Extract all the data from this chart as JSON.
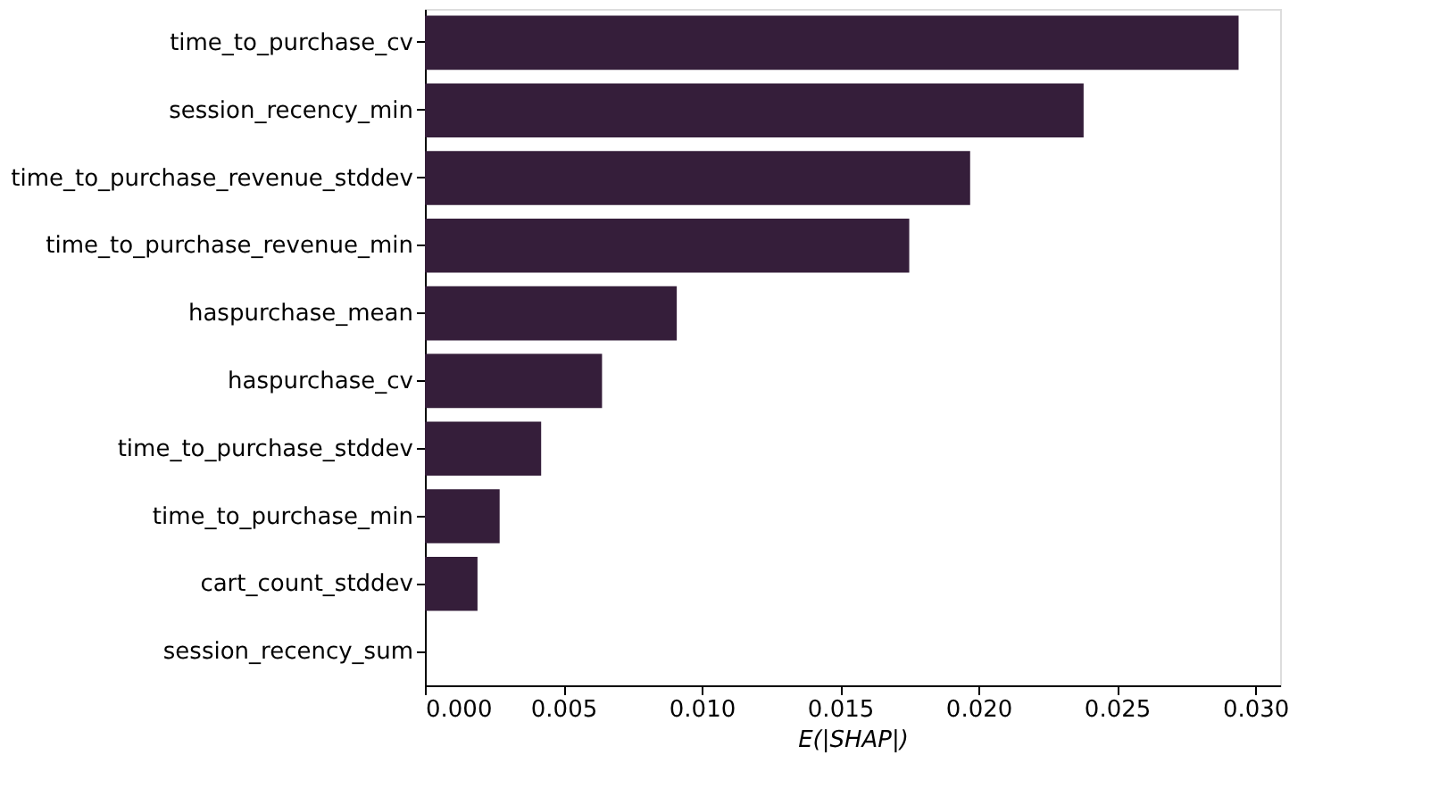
{
  "chart_data": {
    "type": "bar",
    "orientation": "horizontal",
    "xlabel": "E(|SHAP|)",
    "categories": [
      "time_to_purchase_cv",
      "session_recency_min",
      "time_to_purchase_revenue_stddev",
      "time_to_purchase_revenue_min",
      "haspurchase_mean",
      "haspurchase_cv",
      "time_to_purchase_stddev",
      "time_to_purchase_min",
      "cart_count_stddev",
      "session_recency_sum"
    ],
    "values": [
      0.0294,
      0.0238,
      0.0197,
      0.0175,
      0.0091,
      0.0064,
      0.0042,
      0.0027,
      0.0019,
      0.0
    ],
    "color": "#351e3a",
    "xlim": [
      0,
      0.0309
    ],
    "xticks": [
      {
        "value": 0,
        "label": "0.000"
      },
      {
        "value": 0.005,
        "label": "0.005"
      },
      {
        "value": 0.01,
        "label": "0.010"
      },
      {
        "value": 0.015,
        "label": "0.015"
      },
      {
        "value": 0.02,
        "label": "0.020"
      },
      {
        "value": 0.025,
        "label": "0.025"
      },
      {
        "value": 0.03,
        "label": "0.030"
      }
    ],
    "grid": false
  }
}
